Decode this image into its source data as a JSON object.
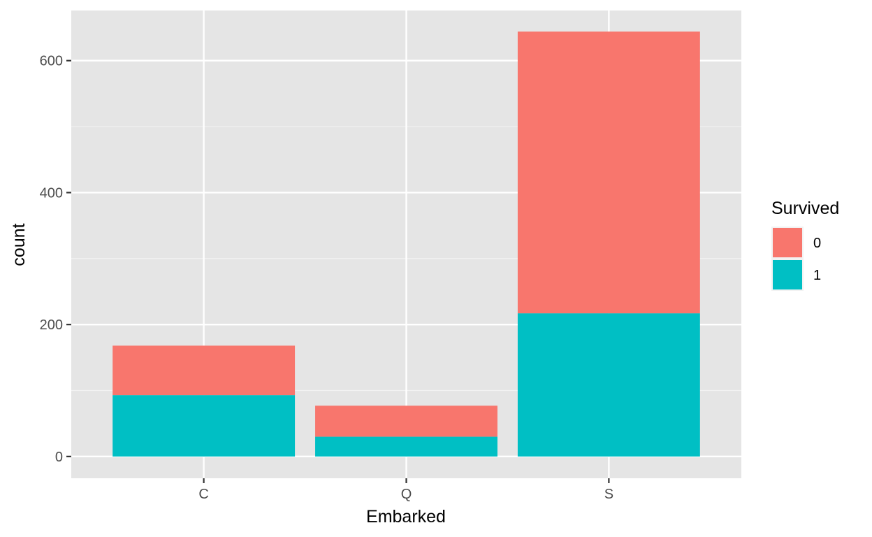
{
  "chart_data": {
    "type": "bar",
    "stacked": true,
    "xlabel": "Embarked",
    "ylabel": "count",
    "categories": [
      "C",
      "Q",
      "S"
    ],
    "series": [
      {
        "name": "0",
        "values": [
          75,
          47,
          427
        ],
        "color": "#F8766D"
      },
      {
        "name": "1",
        "values": [
          93,
          30,
          217
        ],
        "color": "#00BFC4"
      }
    ],
    "ylim": [
      -33,
      676
    ],
    "yticks": [
      0,
      200,
      400,
      600
    ],
    "grid": true,
    "legend": {
      "title": "Survived",
      "placement": "right"
    },
    "panel_background": "#E5E5E5"
  }
}
